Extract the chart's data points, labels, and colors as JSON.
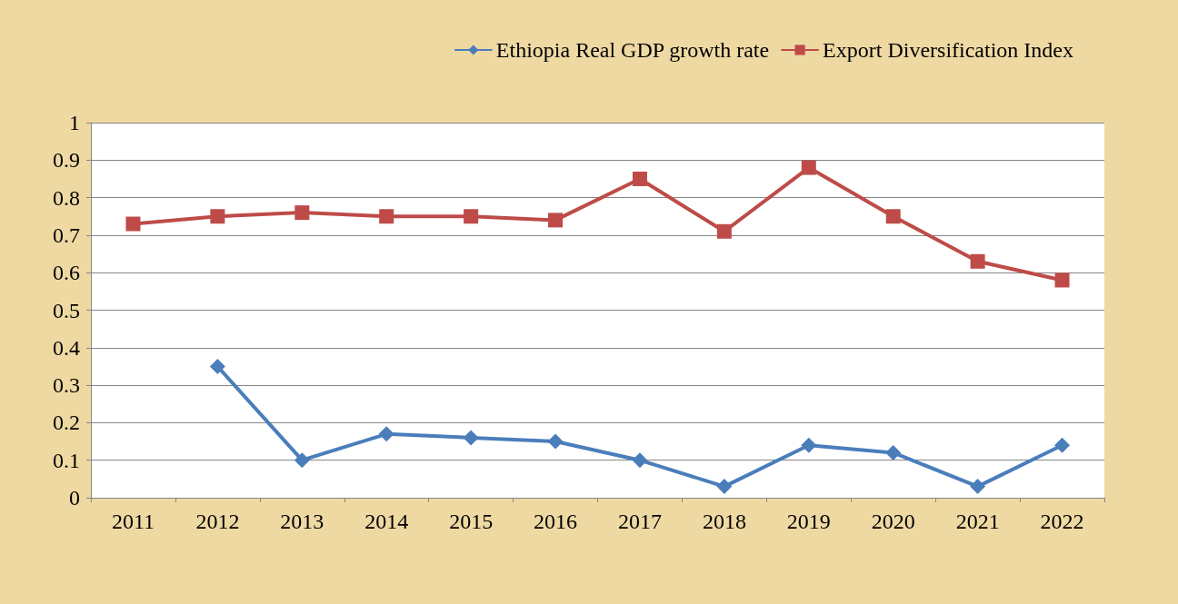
{
  "chart_data": {
    "type": "line",
    "categories": [
      "2011",
      "2012",
      "2013",
      "2014",
      "2015",
      "2016",
      "2017",
      "2018",
      "2019",
      "2020",
      "2021",
      "2022"
    ],
    "series": [
      {
        "name": "Ethiopia Real GDP growth rate",
        "color": "#4a7ebb",
        "marker": "diamond",
        "values": [
          null,
          0.35,
          0.1,
          0.17,
          0.16,
          0.15,
          0.1,
          0.03,
          0.14,
          0.12,
          0.03,
          0.14
        ]
      },
      {
        "name": "Export Diversification Index",
        "color": "#be4b48",
        "marker": "square",
        "values": [
          0.73,
          0.75,
          0.76,
          0.75,
          0.75,
          0.74,
          0.85,
          0.71,
          0.88,
          0.75,
          0.63,
          0.58
        ]
      }
    ],
    "ylim": [
      0,
      1
    ],
    "yticks": [
      0,
      0.1,
      0.2,
      0.3,
      0.4,
      0.5,
      0.6,
      0.7,
      0.8,
      0.9,
      1
    ],
    "grid": "y",
    "legend": "top right",
    "line_style": "solid"
  }
}
